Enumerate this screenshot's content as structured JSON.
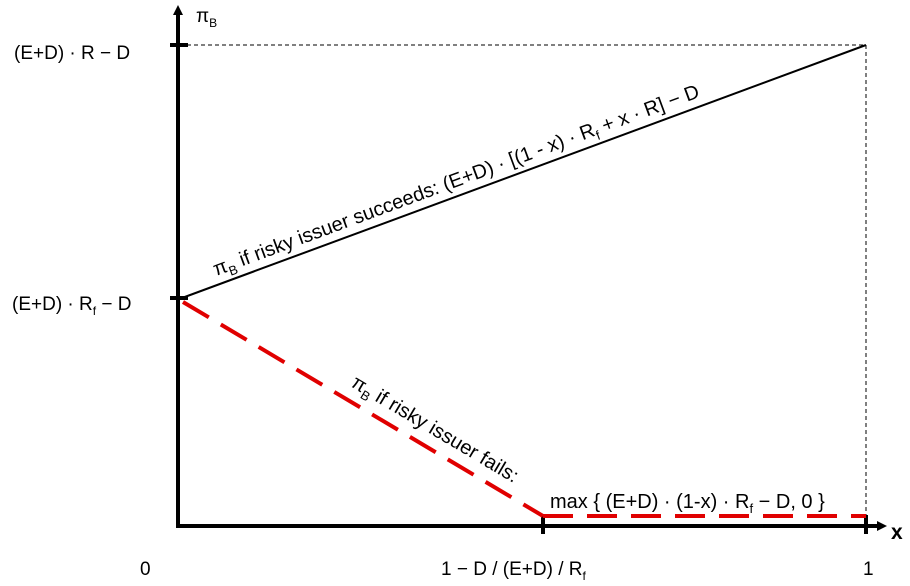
{
  "colors": {
    "axis": "#000000",
    "success_line": "#000000",
    "fail_line": "#e00000",
    "guide": "#000000",
    "background": "#ffffff"
  },
  "axes": {
    "y_title": {
      "base": "π",
      "sub": "B"
    },
    "x_title": "x",
    "x_origin_label": "0",
    "x_kink_label": {
      "main": "1 − D / (E+D) / R",
      "sub": "f"
    },
    "x_end_label": "1",
    "y_top_label": "(E+D) · R − D",
    "y_mid_label": {
      "main": "(E+D) · R",
      "sub": "f",
      "tail": " − D"
    }
  },
  "curves": {
    "success": {
      "label_prefix": {
        "base": "π",
        "sub": "B"
      },
      "label_main": " if risky issuer succeeds: (E+D) · [(1 - x) · R",
      "label_sub": "f",
      "label_tail": " + x · R] − D"
    },
    "fail": {
      "label_prefix": {
        "base": "π",
        "sub": "B"
      },
      "label_main": " if risky issuer fails:",
      "formula_main": "max { (E+D) · (1-x) · R",
      "formula_sub": "f",
      "formula_tail": " − D, 0 }"
    }
  }
}
